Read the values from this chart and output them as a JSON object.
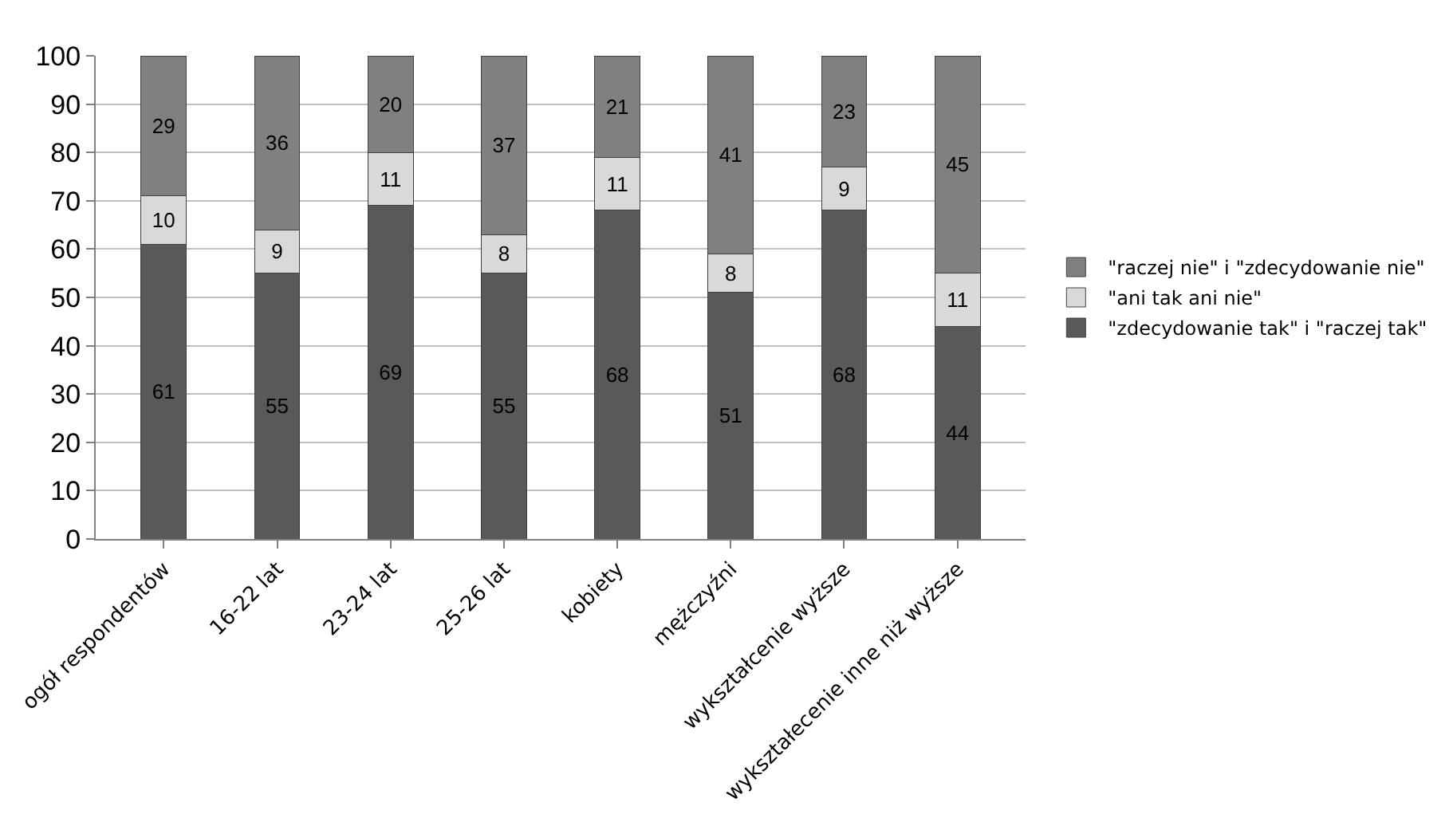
{
  "chart_data": {
    "type": "bar",
    "stacked": true,
    "categories": [
      "ogół respondentów",
      "16-22 lat",
      "23-24 lat",
      "25-26 lat",
      "kobiety",
      "mężczyźni",
      "wykształcenie wyższe",
      "wykształecenie inne niż wyższe"
    ],
    "series": [
      {
        "name": "\"zdecydowanie tak\" i \"raczej tak\"",
        "color": "#595959",
        "values": [
          61,
          55,
          69,
          55,
          68,
          51,
          68,
          44
        ]
      },
      {
        "name": "\"ani tak ani nie\"",
        "color": "#d9d9d9",
        "values": [
          10,
          9,
          11,
          8,
          11,
          8,
          9,
          11
        ]
      },
      {
        "name": "\"raczej nie\" i \"zdecydowanie nie\"",
        "color": "#808080",
        "values": [
          29,
          36,
          20,
          37,
          21,
          41,
          23,
          45
        ]
      }
    ],
    "ylim": [
      0,
      100
    ],
    "yticks": [
      0,
      10,
      20,
      30,
      40,
      50,
      60,
      70,
      80,
      90,
      100
    ],
    "grid": "y",
    "legend": "right",
    "data_labels": true
  }
}
